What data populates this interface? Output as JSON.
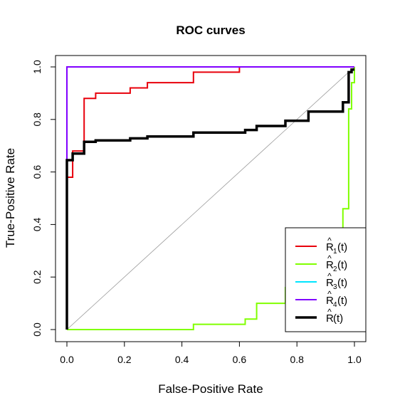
{
  "chart_data": {
    "type": "line",
    "title": "ROC curves",
    "xlabel": "False-Positive Rate",
    "ylabel": "True-Positive Rate",
    "xlim": [
      0,
      1
    ],
    "ylim": [
      0,
      1
    ],
    "xticks": [
      "0.0",
      "0.2",
      "0.4",
      "0.6",
      "0.8",
      "1.0"
    ],
    "yticks": [
      "0.0",
      "0.2",
      "0.4",
      "0.6",
      "0.8",
      "1.0"
    ],
    "grid": false,
    "diagonal_reference": true,
    "legend_position": "bottom-right",
    "series": [
      {
        "name": "R1(t)",
        "legend_base": "R",
        "legend_sub": "1",
        "legend_suffix": "(t)",
        "color": "#e8000b",
        "width": 2,
        "x": [
          0,
          0,
          0.02,
          0.02,
          0.06,
          0.06,
          0.1,
          0.1,
          0.22,
          0.22,
          0.28,
          0.28,
          0.44,
          0.44,
          0.6,
          0.6,
          1.0
        ],
        "y": [
          0,
          0.58,
          0.58,
          0.68,
          0.68,
          0.88,
          0.88,
          0.9,
          0.9,
          0.92,
          0.92,
          0.94,
          0.94,
          0.98,
          0.98,
          1.0,
          1.0
        ]
      },
      {
        "name": "R2(t)",
        "legend_base": "R",
        "legend_sub": "2",
        "legend_suffix": "(t)",
        "color": "#80ff00",
        "width": 2,
        "x": [
          0,
          0,
          0.44,
          0.44,
          0.62,
          0.62,
          0.66,
          0.66,
          0.76,
          0.76,
          0.96,
          0.96,
          0.98,
          0.98,
          0.99,
          0.99,
          1.0,
          1.0
        ],
        "y": [
          0,
          0,
          0,
          0.02,
          0.02,
          0.04,
          0.04,
          0.1,
          0.1,
          0.16,
          0.16,
          0.46,
          0.46,
          0.84,
          0.84,
          0.94,
          0.94,
          1.0
        ]
      },
      {
        "name": "R3(t)",
        "legend_base": "R",
        "legend_sub": "3",
        "legend_suffix": "(t)",
        "color": "#00e5ff",
        "width": 2,
        "x": [
          0,
          0,
          1.0
        ],
        "y": [
          0,
          1.0,
          1.0
        ]
      },
      {
        "name": "R4(t)",
        "legend_base": "R",
        "legend_sub": "4",
        "legend_suffix": "(t)",
        "color": "#8000ff",
        "width": 2,
        "x": [
          0,
          0,
          1.0
        ],
        "y": [
          0,
          1.0,
          1.0
        ]
      },
      {
        "name": "R(t)",
        "legend_base": "R",
        "legend_sub": "",
        "legend_suffix": "(t)",
        "color": "#000000",
        "width": 3.5,
        "x": [
          0,
          0,
          0.02,
          0.02,
          0.06,
          0.06,
          0.1,
          0.1,
          0.22,
          0.22,
          0.28,
          0.28,
          0.44,
          0.44,
          0.62,
          0.62,
          0.66,
          0.66,
          0.76,
          0.76,
          0.84,
          0.84,
          0.96,
          0.96,
          0.98,
          0.98,
          0.99,
          0.99,
          1.0
        ],
        "y": [
          0,
          0.645,
          0.645,
          0.67,
          0.67,
          0.715,
          0.715,
          0.72,
          0.72,
          0.728,
          0.728,
          0.735,
          0.735,
          0.75,
          0.75,
          0.76,
          0.76,
          0.775,
          0.775,
          0.795,
          0.795,
          0.83,
          0.83,
          0.865,
          0.865,
          0.98,
          0.98,
          0.99,
          0.99
        ]
      }
    ]
  }
}
